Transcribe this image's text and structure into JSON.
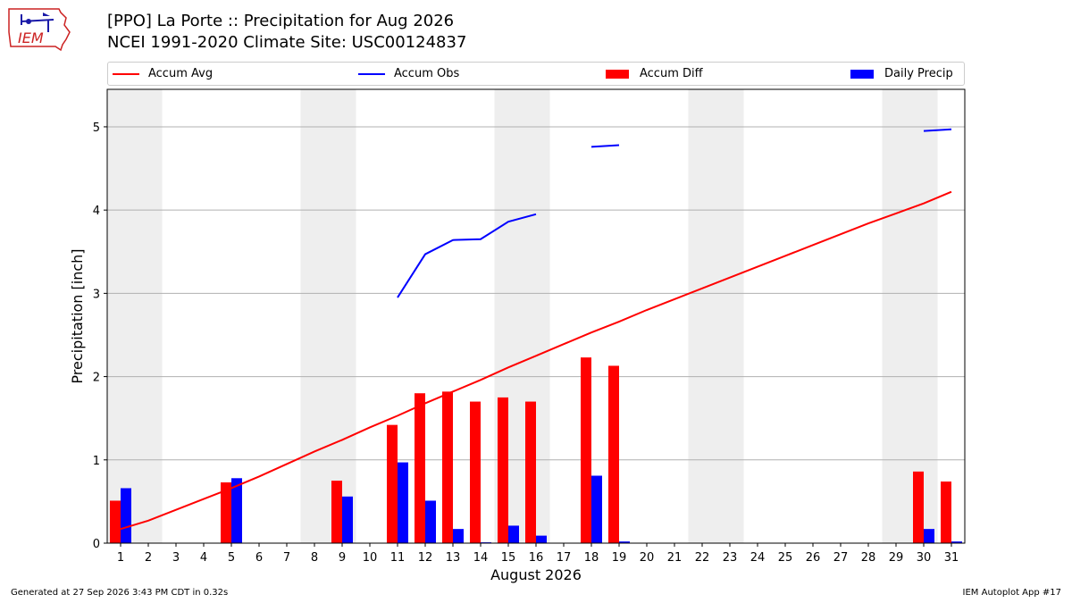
{
  "logo_text": "IEM",
  "title_line1": "[PPO] La Porte :: Precipitation for Aug 2026",
  "title_line2": "NCEI 1991-2020 Climate Site: USC00124837",
  "legend": {
    "accum_avg": "Accum Avg",
    "accum_obs": "Accum Obs",
    "accum_diff": "Accum Diff",
    "daily_precip": "Daily Precip"
  },
  "colors": {
    "avg": "#ff0000",
    "obs": "#0000ff",
    "diff": "#ff0000",
    "daily": "#0000ff",
    "weekend": "#eeeeee"
  },
  "footer_left": "Generated at 27 Sep 2026 3:43 PM CDT in 0.32s",
  "footer_right": "IEM Autoplot App #17",
  "chart_data": {
    "type": "bar",
    "xlabel": "August 2026",
    "ylabel": "Precipitation [inch]",
    "ylim": [
      0,
      5.45
    ],
    "yticks": [
      0,
      1,
      2,
      3,
      4,
      5
    ],
    "grid": "y",
    "legend_position": "top",
    "days": [
      1,
      2,
      3,
      4,
      5,
      6,
      7,
      8,
      9,
      10,
      11,
      12,
      13,
      14,
      15,
      16,
      17,
      18,
      19,
      20,
      21,
      22,
      23,
      24,
      25,
      26,
      27,
      28,
      29,
      30,
      31
    ],
    "weekend_days": [
      [
        1,
        2
      ],
      [
        8,
        9
      ],
      [
        15,
        16
      ],
      [
        22,
        23
      ],
      [
        29,
        30
      ]
    ],
    "accum_avg": [
      0.17,
      0.27,
      0.4,
      0.53,
      0.66,
      0.8,
      0.95,
      1.1,
      1.24,
      1.39,
      1.53,
      1.68,
      1.82,
      1.96,
      2.11,
      2.25,
      2.39,
      2.53,
      2.66,
      2.8,
      2.93,
      3.06,
      3.19,
      3.32,
      3.45,
      3.58,
      3.71,
      3.84,
      3.96,
      4.08,
      4.22
    ],
    "accum_obs": [
      null,
      null,
      null,
      null,
      null,
      null,
      null,
      null,
      null,
      null,
      2.95,
      3.47,
      3.64,
      3.65,
      3.86,
      3.95,
      null,
      4.76,
      4.78,
      null,
      null,
      null,
      null,
      null,
      null,
      null,
      null,
      null,
      null,
      4.95,
      4.97
    ],
    "accum_diff": [
      0.51,
      0,
      0,
      0,
      0.73,
      0,
      0,
      0,
      0.75,
      0,
      1.42,
      1.8,
      1.82,
      1.7,
      1.75,
      1.7,
      0,
      2.23,
      2.13,
      0,
      0,
      0,
      0,
      0,
      0,
      0,
      0,
      0,
      0,
      0.86,
      0.74
    ],
    "daily_precip": [
      0.66,
      0,
      0,
      0,
      0.78,
      0,
      0,
      0,
      0.56,
      0,
      0.97,
      0.51,
      0.17,
      0.01,
      0.21,
      0.09,
      0,
      0.81,
      0.02,
      0,
      0,
      0,
      0,
      0,
      0,
      0,
      0,
      0,
      0,
      0.17,
      0.02
    ]
  }
}
